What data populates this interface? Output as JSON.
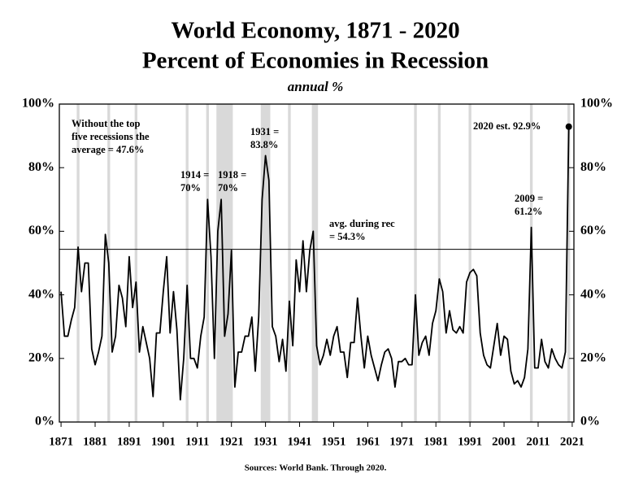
{
  "chart_data": {
    "type": "line",
    "title": "World Economy, 1871 - 2020",
    "subtitle": "Percent of Economies in Recession",
    "unit_label": "annual %",
    "source": "Sources: World Bank. Through 2020.",
    "color": "#000000",
    "band_color": "#d9d9d9",
    "x": [
      1871,
      1872,
      1873,
      1874,
      1875,
      1876,
      1877,
      1878,
      1879,
      1880,
      1881,
      1882,
      1883,
      1884,
      1885,
      1886,
      1887,
      1888,
      1889,
      1890,
      1891,
      1892,
      1893,
      1894,
      1895,
      1896,
      1897,
      1898,
      1899,
      1900,
      1901,
      1902,
      1903,
      1904,
      1905,
      1906,
      1907,
      1908,
      1909,
      1910,
      1911,
      1912,
      1913,
      1914,
      1915,
      1916,
      1917,
      1918,
      1919,
      1920,
      1921,
      1922,
      1923,
      1924,
      1925,
      1926,
      1927,
      1928,
      1929,
      1930,
      1931,
      1932,
      1933,
      1934,
      1935,
      1936,
      1937,
      1938,
      1939,
      1940,
      1941,
      1942,
      1943,
      1944,
      1945,
      1946,
      1947,
      1948,
      1949,
      1950,
      1951,
      1952,
      1953,
      1954,
      1955,
      1956,
      1957,
      1958,
      1959,
      1960,
      1961,
      1962,
      1963,
      1964,
      1965,
      1966,
      1967,
      1968,
      1969,
      1970,
      1971,
      1972,
      1973,
      1974,
      1975,
      1976,
      1977,
      1978,
      1979,
      1980,
      1981,
      1982,
      1983,
      1984,
      1985,
      1986,
      1987,
      1988,
      1989,
      1990,
      1991,
      1992,
      1993,
      1994,
      1995,
      1996,
      1997,
      1998,
      1999,
      2000,
      2001,
      2002,
      2003,
      2004,
      2005,
      2006,
      2007,
      2008,
      2009,
      2010,
      2011,
      2012,
      2013,
      2014,
      2015,
      2016,
      2017,
      2018,
      2019,
      2020
    ],
    "values": [
      41,
      27,
      27,
      32,
      36,
      55,
      41,
      50,
      50,
      23,
      18,
      22,
      27,
      59,
      50,
      22,
      27,
      43,
      39,
      30,
      52,
      36,
      44,
      22,
      30,
      25,
      20,
      8,
      28,
      28,
      41,
      52,
      28,
      41,
      29,
      7,
      20,
      43,
      20,
      20,
      17,
      27,
      33,
      70,
      52,
      20,
      60,
      70,
      27,
      34,
      54,
      11,
      22,
      22,
      27,
      27,
      33,
      16,
      33,
      70,
      83.8,
      76,
      30,
      27,
      19,
      26,
      16,
      38,
      24,
      51,
      41,
      57,
      41,
      54,
      60,
      24,
      18,
      21,
      26,
      21,
      27,
      30,
      22,
      22,
      14,
      25,
      25,
      39,
      27,
      17,
      27,
      21,
      17,
      13,
      18,
      22,
      23,
      20,
      11,
      19,
      19,
      20,
      18,
      18,
      40,
      21,
      25,
      27,
      21,
      31,
      35,
      45,
      41,
      28,
      35,
      29,
      28,
      30,
      28,
      44,
      47,
      48,
      46,
      28,
      21,
      18,
      17,
      24,
      31,
      21,
      27,
      26,
      16,
      12,
      13,
      11,
      14,
      23,
      61.2,
      17,
      17,
      26,
      19,
      17,
      23,
      20,
      18,
      17,
      22,
      92.9
    ],
    "recession_bands": [
      [
        1875.6,
        1876.4
      ],
      [
        1884.6,
        1885.4
      ],
      [
        1892.6,
        1893.4
      ],
      [
        1907.6,
        1908.4
      ],
      [
        1913.6,
        1914.4
      ],
      [
        1916.6,
        1921.4
      ],
      [
        1929.6,
        1932.4
      ],
      [
        1937.6,
        1938.4
      ],
      [
        1944.6,
        1946.4
      ],
      [
        1974.6,
        1975.4
      ],
      [
        1981.6,
        1982.4
      ],
      [
        1990.6,
        1991.4
      ],
      [
        2008.6,
        2009.4
      ],
      [
        2019.6,
        2020.4
      ]
    ],
    "average": 54.3,
    "annotations": [
      {
        "lines": [
          "Without the top",
          "five recessions the",
          "average = 47.6%"
        ]
      },
      {
        "lines": [
          "1914 =",
          "70%"
        ]
      },
      {
        "lines": [
          "1918 =",
          "70%"
        ]
      },
      {
        "lines": [
          "1931 =",
          "83.8%"
        ]
      },
      {
        "lines": [
          "avg. during rec",
          "= 54.3%"
        ]
      },
      {
        "lines": [
          "2009 =",
          "61.2%"
        ]
      },
      {
        "lines": [
          "2020 est. 92.9%"
        ]
      }
    ],
    "xlim": [
      1870.5,
      2021.5
    ],
    "xticks": [
      1871,
      1881,
      1891,
      1901,
      1911,
      1921,
      1931,
      1941,
      1951,
      1961,
      1971,
      1981,
      1991,
      2001,
      2011,
      2021
    ],
    "ylim": [
      0,
      100
    ],
    "yticks": [
      {
        "value": 0,
        "label": "0%"
      },
      {
        "value": 20,
        "label": "20%"
      },
      {
        "value": 40,
        "label": "40%"
      },
      {
        "value": 60,
        "label": "60%"
      },
      {
        "value": 80,
        "label": "80%"
      },
      {
        "value": 100,
        "label": "100%"
      }
    ],
    "y2lim": [
      0,
      100
    ],
    "y2ticks": [
      {
        "value": 0,
        "label": "0%"
      },
      {
        "value": 20,
        "label": "20%"
      },
      {
        "value": 40,
        "label": "40%"
      },
      {
        "value": 60,
        "label": "60%"
      },
      {
        "value": 80,
        "label": "80%"
      },
      {
        "value": 100,
        "label": "100%"
      }
    ]
  }
}
